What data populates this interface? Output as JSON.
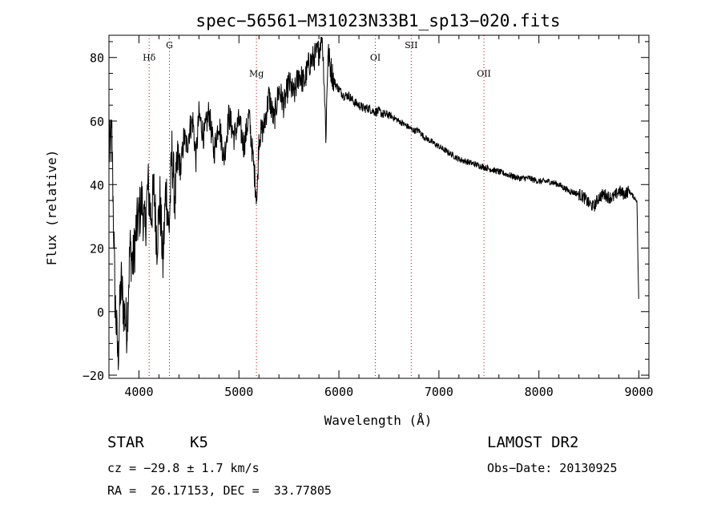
{
  "chart_data": {
    "type": "line",
    "title": "spec−56561−M31023N33B1_sp13−020.fits",
    "xlabel": "Wavelength (Å)",
    "ylabel": "Flux (relative)",
    "xlim": [
      3700,
      9100
    ],
    "ylim": [
      -21,
      87
    ],
    "x_ticks": [
      4000,
      5000,
      6000,
      7000,
      8000,
      9000
    ],
    "x_tick_labels": [
      "4000",
      "5000",
      "6000",
      "7000",
      "8000",
      "9000"
    ],
    "y_ticks": [
      -20,
      0,
      20,
      40,
      60,
      80
    ],
    "y_tick_labels": [
      "−20",
      "0",
      "20",
      "40",
      "60",
      "80"
    ],
    "grid": false,
    "line_color": "#000000",
    "marker_color": "#cc0000",
    "line_markers": [
      {
        "label": "Hδ",
        "x": 4102,
        "label_y": 79
      },
      {
        "label": "G",
        "x": 4305,
        "label_y": 83
      },
      {
        "label": "Mg",
        "x": 5175,
        "label_y": 74
      },
      {
        "label": "OI",
        "x": 6364,
        "label_y": 79
      },
      {
        "label": "SII",
        "x": 6723,
        "label_y": 83
      },
      {
        "label": "OII",
        "x": 7450,
        "label_y": 74
      }
    ],
    "series": [
      {
        "x": [
          3700,
          3730,
          3760,
          3790,
          3820,
          3850,
          3880,
          3910,
          3940,
          3970,
          4000,
          4030,
          4060,
          4090,
          4120,
          4150,
          4180,
          4210,
          4240,
          4270,
          4300,
          4330,
          4360,
          4390,
          4420,
          4450,
          4480,
          4510,
          4540,
          4570,
          4600,
          4650,
          4700,
          4750,
          4800,
          4850,
          4900,
          4950,
          5000,
          5050,
          5100,
          5150,
          5180,
          5200,
          5250,
          5300,
          5350,
          5400,
          5450,
          5500,
          5550,
          5600,
          5650,
          5700,
          5750,
          5800,
          5830,
          5850,
          5870,
          5890,
          5910,
          5930,
          5960,
          6000,
          6050,
          6100,
          6150,
          6200,
          6250,
          6300,
          6350,
          6400,
          6450,
          6500,
          6550,
          6600,
          6650,
          6700,
          6750,
          6800,
          6850,
          6900,
          6950,
          7000,
          7100,
          7200,
          7300,
          7400,
          7500,
          7600,
          7700,
          7800,
          7900,
          8000,
          8100,
          8200,
          8300,
          8400,
          8450,
          8500,
          8550,
          8600,
          8650,
          8700,
          8750,
          8800,
          8850,
          8900,
          8950,
          8980,
          9000
        ],
        "y": [
          50,
          55,
          5,
          -15,
          10,
          0,
          -5,
          20,
          15,
          25,
          30,
          35,
          25,
          40,
          30,
          38,
          22,
          35,
          15,
          40,
          25,
          50,
          35,
          48,
          45,
          55,
          52,
          58,
          60,
          48,
          62,
          55,
          63,
          50,
          60,
          48,
          62,
          55,
          60,
          52,
          62,
          45,
          35,
          55,
          58,
          68,
          60,
          70,
          65,
          72,
          68,
          75,
          72,
          78,
          80,
          82,
          88,
          75,
          55,
          82,
          78,
          75,
          72,
          70,
          68,
          68,
          66,
          65,
          64,
          64,
          63,
          63,
          62,
          62,
          61,
          60,
          59,
          58,
          57,
          57,
          55,
          54,
          53,
          52,
          50,
          48,
          47,
          46,
          45,
          44,
          43,
          42,
          42,
          41,
          41,
          40,
          38,
          37,
          36,
          34,
          33,
          36,
          37,
          36,
          36,
          38,
          37,
          38,
          36,
          35,
          0
        ]
      }
    ]
  },
  "info": {
    "object_class": "STAR",
    "subclass": "K5",
    "survey": "LAMOST DR2",
    "redshift_line": "cz = −29.8 ± 1.7 km/s",
    "obs_date_line": "Obs−Date: 20130925",
    "coords_line": "RA =  26.17153, DEC =  33.77805"
  }
}
